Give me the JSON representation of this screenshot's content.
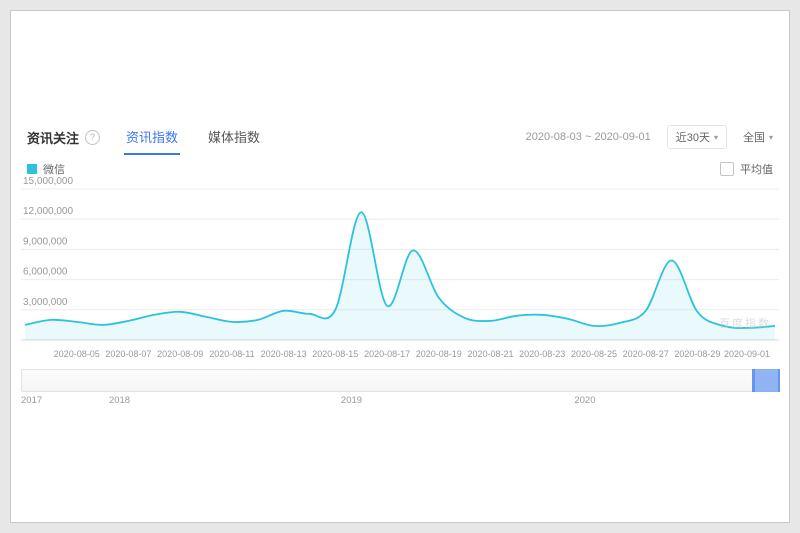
{
  "page": {
    "watermark": "百度指数"
  },
  "header": {
    "section_title": "资讯关注",
    "help_icon": "?",
    "tabs": [
      {
        "label": "资讯指数"
      },
      {
        "label": "媒体指数"
      }
    ],
    "date_range": "2020-08-03 ~ 2020-09-01",
    "time_select": {
      "label": "近30天",
      "caret": "▾"
    },
    "region_select": {
      "label": "全国",
      "caret": "▾"
    }
  },
  "legend": {
    "series_label": "微信",
    "average_checkbox_label": "平均值"
  },
  "chart_data": {
    "type": "area",
    "title": "",
    "xlabel": "",
    "ylabel": "",
    "grid": true,
    "legend_position": "top-left",
    "ylim": [
      0,
      15000000
    ],
    "y_tick_values": [
      3000000,
      6000000,
      9000000,
      12000000,
      15000000
    ],
    "y_tick_labels": [
      "3,000,000",
      "6,000,000",
      "9,000,000",
      "12,000,000",
      "15,000,000"
    ],
    "x": [
      "2020-08-03",
      "2020-08-04",
      "2020-08-05",
      "2020-08-06",
      "2020-08-07",
      "2020-08-08",
      "2020-08-09",
      "2020-08-10",
      "2020-08-11",
      "2020-08-12",
      "2020-08-13",
      "2020-08-14",
      "2020-08-15",
      "2020-08-16",
      "2020-08-17",
      "2020-08-18",
      "2020-08-19",
      "2020-08-20",
      "2020-08-21",
      "2020-08-22",
      "2020-08-23",
      "2020-08-24",
      "2020-08-25",
      "2020-08-26",
      "2020-08-27",
      "2020-08-28",
      "2020-08-29",
      "2020-08-30",
      "2020-08-31",
      "2020-09-01"
    ],
    "x_tick_labels": [
      "2020-08-05",
      "2020-08-07",
      "2020-08-09",
      "2020-08-11",
      "2020-08-13",
      "2020-08-15",
      "2020-08-17",
      "2020-08-19",
      "2020-08-21",
      "2020-08-23",
      "2020-08-25",
      "2020-08-27",
      "2020-08-29",
      "2020-09-01"
    ],
    "series": [
      {
        "name": "微信",
        "color": "#2cc2de",
        "fill": "rgba(44,194,222,0.10)",
        "values": [
          1500000,
          2000000,
          1800000,
          1500000,
          1900000,
          2500000,
          2800000,
          2300000,
          1800000,
          2000000,
          2900000,
          2600000,
          3000000,
          12700000,
          3400000,
          8900000,
          4200000,
          2200000,
          1900000,
          2400000,
          2500000,
          2100000,
          1400000,
          1700000,
          2900000,
          7900000,
          2800000,
          1400000,
          1200000,
          1400000
        ]
      }
    ]
  },
  "timeline": {
    "years": [
      {
        "label": "2017",
        "pct": 0
      },
      {
        "label": "2018",
        "pct": 13
      },
      {
        "label": "2019",
        "pct": 43.6
      },
      {
        "label": "2020",
        "pct": 74.4
      }
    ],
    "selection": {
      "left_pct": 96.5,
      "width_pct": 3.1
    }
  }
}
